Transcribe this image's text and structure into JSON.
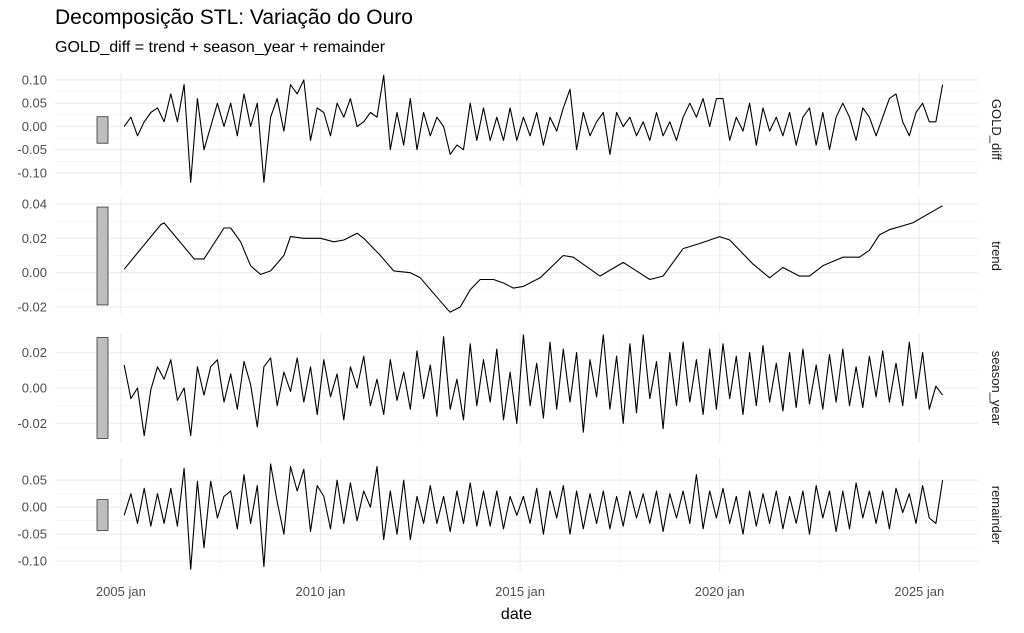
{
  "chart_data": {
    "type": "line",
    "title": "Decomposição STL: Variação do Ouro",
    "subtitle": "GOLD_diff = trend + season_year + remainder",
    "xlabel": "date",
    "x_ticks": [
      "2005 jan",
      "2010 jan",
      "2015 jan",
      "2020 jan",
      "2025 jan"
    ],
    "x_tick_values": [
      2005,
      2010,
      2015,
      2020,
      2025
    ],
    "xlim": [
      2003.35,
      2026.47
    ],
    "grid": true,
    "line_color": "#000000",
    "scale_bar_color": "#bebebe",
    "scale_bar_length": 0.057,
    "x": [
      "2005-02",
      "2005-04",
      "2005-06",
      "2005-08",
      "2005-10",
      "2005-12",
      "2006-02",
      "2006-04",
      "2006-06",
      "2006-08",
      "2006-10",
      "2006-12",
      "2007-02",
      "2007-04",
      "2007-06",
      "2007-08",
      "2007-10",
      "2007-12",
      "2008-02",
      "2008-04",
      "2008-06",
      "2008-08",
      "2008-10",
      "2008-12",
      "2009-02",
      "2009-04",
      "2009-06",
      "2009-08",
      "2009-10",
      "2009-12",
      "2010-02",
      "2010-04",
      "2010-06",
      "2010-08",
      "2010-10",
      "2010-12",
      "2011-02",
      "2011-04",
      "2011-06",
      "2011-08",
      "2011-10",
      "2011-12",
      "2012-02",
      "2012-04",
      "2012-06",
      "2012-08",
      "2012-10",
      "2012-12",
      "2013-02",
      "2013-04",
      "2013-06",
      "2013-08",
      "2013-10",
      "2013-12",
      "2014-02",
      "2014-04",
      "2014-06",
      "2014-08",
      "2014-10",
      "2014-12",
      "2015-02",
      "2015-04",
      "2015-06",
      "2015-08",
      "2015-10",
      "2015-12",
      "2016-02",
      "2016-04",
      "2016-06",
      "2016-08",
      "2016-10",
      "2016-12",
      "2017-02",
      "2017-04",
      "2017-06",
      "2017-08",
      "2017-10",
      "2017-12",
      "2018-02",
      "2018-04",
      "2018-06",
      "2018-08",
      "2018-10",
      "2018-12",
      "2019-02",
      "2019-04",
      "2019-06",
      "2019-08",
      "2019-10",
      "2019-12",
      "2020-02",
      "2020-04",
      "2020-06",
      "2020-08",
      "2020-10",
      "2020-12",
      "2021-02",
      "2021-04",
      "2021-06",
      "2021-08",
      "2021-10",
      "2021-12",
      "2022-02",
      "2022-04",
      "2022-06",
      "2022-08",
      "2022-10",
      "2022-12",
      "2023-02",
      "2023-04",
      "2023-06",
      "2023-08",
      "2023-10",
      "2023-12",
      "2024-02",
      "2024-04",
      "2024-06",
      "2024-08",
      "2024-10",
      "2024-12",
      "2025-02",
      "2025-04",
      "2025-06",
      "2025-08"
    ],
    "panels": [
      {
        "name": "GOLD_diff",
        "ylim": [
          -0.128,
          0.115
        ],
        "y_ticks": [
          0.1,
          0.05,
          0.0,
          -0.05,
          -0.1
        ],
        "y_tick_labels": [
          "0.10",
          "0.05",
          "0.00",
          "-0.05",
          "-0.10"
        ],
        "values": [
          0.0,
          0.02,
          -0.02,
          0.01,
          0.03,
          0.04,
          0.01,
          0.07,
          0.01,
          0.09,
          -0.12,
          0.06,
          -0.05,
          0.0,
          0.05,
          0.0,
          0.05,
          -0.02,
          0.07,
          0.0,
          0.05,
          -0.12,
          0.02,
          0.06,
          -0.01,
          0.09,
          0.07,
          0.1,
          -0.03,
          0.04,
          0.03,
          -0.02,
          0.05,
          0.02,
          0.06,
          0.0,
          0.01,
          0.03,
          0.02,
          0.11,
          -0.05,
          0.03,
          -0.04,
          0.06,
          -0.05,
          0.03,
          -0.02,
          0.02,
          0.0,
          -0.06,
          -0.04,
          -0.05,
          0.05,
          -0.03,
          0.04,
          -0.03,
          0.02,
          -0.03,
          0.04,
          -0.03,
          0.02,
          -0.02,
          0.03,
          -0.04,
          0.02,
          -0.01,
          0.04,
          0.08,
          -0.05,
          0.03,
          -0.02,
          0.01,
          0.03,
          -0.06,
          0.03,
          0.0,
          0.02,
          -0.02,
          0.01,
          -0.03,
          0.03,
          -0.02,
          0.01,
          -0.03,
          0.02,
          0.05,
          0.02,
          0.06,
          0.0,
          0.06,
          0.06,
          -0.03,
          0.02,
          -0.01,
          0.05,
          -0.04,
          0.04,
          -0.01,
          0.02,
          -0.02,
          0.03,
          -0.04,
          0.02,
          0.04,
          -0.04,
          0.03,
          -0.05,
          0.02,
          0.05,
          0.02,
          -0.03,
          0.04,
          0.02,
          -0.02,
          0.02,
          0.06,
          0.07,
          0.01,
          -0.02,
          0.03,
          0.05,
          0.01,
          0.01,
          0.09
        ]
      },
      {
        "name": "trend",
        "ylim": [
          -0.0235,
          0.0429
        ],
        "y_ticks": [
          0.04,
          0.02,
          0.0,
          -0.02
        ],
        "y_tick_labels": [
          "0.04",
          "0.02",
          "0.00",
          "-0.02"
        ],
        "points": [
          [
            "2005-02",
            0.002
          ],
          [
            "2006-01",
            0.028
          ],
          [
            "2006-02",
            0.029
          ],
          [
            "2006-11",
            0.008
          ],
          [
            "2007-02",
            0.008
          ],
          [
            "2007-08",
            0.026
          ],
          [
            "2007-10",
            0.026
          ],
          [
            "2008-01",
            0.018
          ],
          [
            "2008-04",
            0.004
          ],
          [
            "2008-07",
            -0.001
          ],
          [
            "2008-10",
            0.001
          ],
          [
            "2009-02",
            0.01
          ],
          [
            "2009-04",
            0.021
          ],
          [
            "2009-08",
            0.02
          ],
          [
            "2010-01",
            0.02
          ],
          [
            "2010-05",
            0.018
          ],
          [
            "2010-08",
            0.019
          ],
          [
            "2010-12",
            0.023
          ],
          [
            "2011-02",
            0.02
          ],
          [
            "2011-07",
            0.01
          ],
          [
            "2011-11",
            0.001
          ],
          [
            "2012-04",
            0.0
          ],
          [
            "2012-07",
            -0.003
          ],
          [
            "2012-11",
            -0.012
          ],
          [
            "2013-03",
            -0.021
          ],
          [
            "2013-04",
            -0.023
          ],
          [
            "2013-07",
            -0.02
          ],
          [
            "2013-10",
            -0.01
          ],
          [
            "2014-01",
            -0.004
          ],
          [
            "2014-05",
            -0.004
          ],
          [
            "2014-08",
            -0.006
          ],
          [
            "2014-11",
            -0.009
          ],
          [
            "2015-02",
            -0.008
          ],
          [
            "2015-07",
            -0.003
          ],
          [
            "2016-02",
            0.01
          ],
          [
            "2016-05",
            0.009
          ],
          [
            "2017-01",
            -0.002
          ],
          [
            "2017-08",
            0.006
          ],
          [
            "2018-04",
            -0.004
          ],
          [
            "2018-08",
            -0.002
          ],
          [
            "2019-02",
            0.014
          ],
          [
            "2019-07",
            0.017
          ],
          [
            "2020-01",
            0.021
          ],
          [
            "2020-04",
            0.019
          ],
          [
            "2020-11",
            0.005
          ],
          [
            "2021-04",
            -0.003
          ],
          [
            "2021-08",
            0.003
          ],
          [
            "2022-01",
            -0.002
          ],
          [
            "2022-04",
            -0.002
          ],
          [
            "2022-08",
            0.004
          ],
          [
            "2023-02",
            0.009
          ],
          [
            "2023-07",
            0.009
          ],
          [
            "2023-10",
            0.013
          ],
          [
            "2024-01",
            0.022
          ],
          [
            "2024-04",
            0.025
          ],
          [
            "2024-11",
            0.029
          ],
          [
            "2025-08",
            0.039
          ]
        ]
      },
      {
        "name": "season_year",
        "ylim": [
          -0.0311,
          0.0311
        ],
        "y_ticks": [
          0.02,
          0.0,
          -0.02
        ],
        "y_tick_labels": [
          "0.02",
          "0.00",
          "-0.02"
        ],
        "values": [
          0.013,
          -0.006,
          0.0,
          -0.027,
          -0.001,
          0.012,
          0.005,
          0.016,
          -0.007,
          0.0,
          -0.027,
          0.012,
          -0.004,
          0.012,
          0.016,
          -0.008,
          0.008,
          -0.012,
          0.015,
          0.002,
          -0.022,
          0.012,
          0.017,
          -0.01,
          0.009,
          -0.002,
          0.017,
          -0.008,
          0.012,
          -0.015,
          0.016,
          -0.005,
          0.008,
          -0.018,
          0.012,
          0.0,
          0.018,
          -0.01,
          0.005,
          -0.015,
          0.016,
          -0.007,
          0.009,
          -0.012,
          0.021,
          -0.006,
          0.013,
          -0.016,
          0.029,
          -0.012,
          0.005,
          -0.018,
          0.025,
          -0.01,
          0.016,
          -0.008,
          0.022,
          -0.018,
          0.009,
          -0.02,
          0.03,
          -0.01,
          0.014,
          -0.017,
          0.026,
          -0.012,
          0.022,
          -0.008,
          0.02,
          -0.025,
          0.016,
          -0.005,
          0.03,
          -0.012,
          0.018,
          -0.02,
          0.025,
          -0.014,
          0.03,
          -0.006,
          0.015,
          -0.023,
          0.02,
          -0.01,
          0.026,
          -0.008,
          0.016,
          -0.015,
          0.022,
          -0.012,
          0.025,
          -0.006,
          0.018,
          -0.015,
          0.02,
          -0.01,
          0.024,
          -0.008,
          0.014,
          -0.013,
          0.02,
          -0.011,
          0.022,
          -0.009,
          0.013,
          -0.012,
          0.019,
          -0.008,
          0.022,
          -0.01,
          0.012,
          -0.011,
          0.018,
          -0.005,
          0.021,
          -0.008,
          0.014,
          -0.01,
          0.026,
          -0.006,
          0.02,
          -0.012,
          0.001,
          -0.004
        ]
      },
      {
        "name": "remainder",
        "ylim": [
          -0.12,
          0.091
        ],
        "y_ticks": [
          0.05,
          0.0,
          -0.05,
          -0.1
        ],
        "y_tick_labels": [
          "0.05",
          "0.00",
          "-0.05",
          "-0.10"
        ],
        "values": [
          -0.015,
          0.025,
          -0.03,
          0.035,
          -0.035,
          0.025,
          -0.03,
          0.035,
          -0.035,
          0.072,
          -0.115,
          0.048,
          -0.075,
          0.048,
          -0.02,
          0.02,
          0.03,
          -0.04,
          0.06,
          -0.03,
          0.04,
          -0.11,
          0.08,
          0.01,
          -0.05,
          0.075,
          0.03,
          0.07,
          -0.045,
          0.04,
          0.02,
          -0.04,
          0.05,
          -0.03,
          0.045,
          -0.025,
          0.03,
          0.0,
          0.075,
          -0.06,
          0.03,
          -0.05,
          0.05,
          -0.06,
          0.02,
          -0.03,
          0.04,
          -0.03,
          0.02,
          -0.045,
          0.03,
          -0.03,
          0.045,
          -0.035,
          0.03,
          -0.035,
          0.03,
          -0.04,
          0.02,
          -0.015,
          0.02,
          -0.03,
          0.035,
          -0.05,
          0.03,
          -0.02,
          0.04,
          -0.05,
          0.03,
          -0.04,
          0.025,
          -0.03,
          0.03,
          -0.04,
          0.02,
          -0.035,
          0.03,
          -0.02,
          0.025,
          -0.03,
          0.03,
          -0.045,
          0.025,
          -0.02,
          0.03,
          -0.03,
          0.06,
          -0.04,
          0.03,
          -0.02,
          0.035,
          -0.03,
          0.02,
          -0.05,
          0.03,
          -0.035,
          0.025,
          -0.03,
          0.03,
          -0.04,
          0.02,
          -0.03,
          0.03,
          -0.05,
          0.04,
          -0.02,
          0.03,
          -0.045,
          0.03,
          -0.04,
          0.045,
          -0.02,
          0.03,
          -0.03,
          0.03,
          -0.04,
          0.035,
          -0.01,
          0.025,
          -0.03,
          0.04,
          -0.02,
          -0.03,
          0.05
        ]
      }
    ]
  }
}
